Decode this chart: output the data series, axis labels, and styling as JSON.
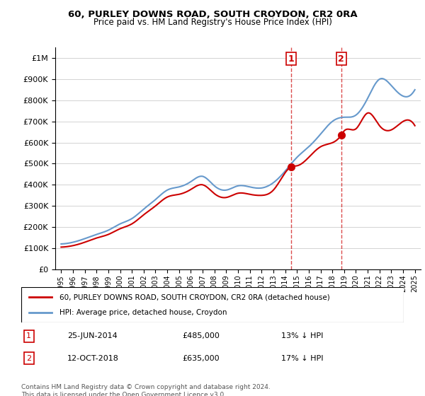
{
  "title1": "60, PURLEY DOWNS ROAD, SOUTH CROYDON, CR2 0RA",
  "title2": "Price paid vs. HM Land Registry's House Price Index (HPI)",
  "legend_line1": "60, PURLEY DOWNS ROAD, SOUTH CROYDON, CR2 0RA (detached house)",
  "legend_line2": "HPI: Average price, detached house, Croydon",
  "annotation1_label": "1",
  "annotation1_date": "25-JUN-2014",
  "annotation1_price": "£485,000",
  "annotation1_hpi": "13% ↓ HPI",
  "annotation2_label": "2",
  "annotation2_date": "12-OCT-2018",
  "annotation2_price": "£635,000",
  "annotation2_hpi": "17% ↓ HPI",
  "footer": "Contains HM Land Registry data © Crown copyright and database right 2024.\nThis data is licensed under the Open Government Licence v3.0.",
  "red_color": "#cc0000",
  "blue_color": "#6699cc",
  "marker1_x": 2014.5,
  "marker1_y": 485000,
  "marker2_x": 2018.75,
  "marker2_y": 635000,
  "ylim": [
    0,
    1050000
  ],
  "xlim": [
    1994.5,
    2025.5
  ]
}
